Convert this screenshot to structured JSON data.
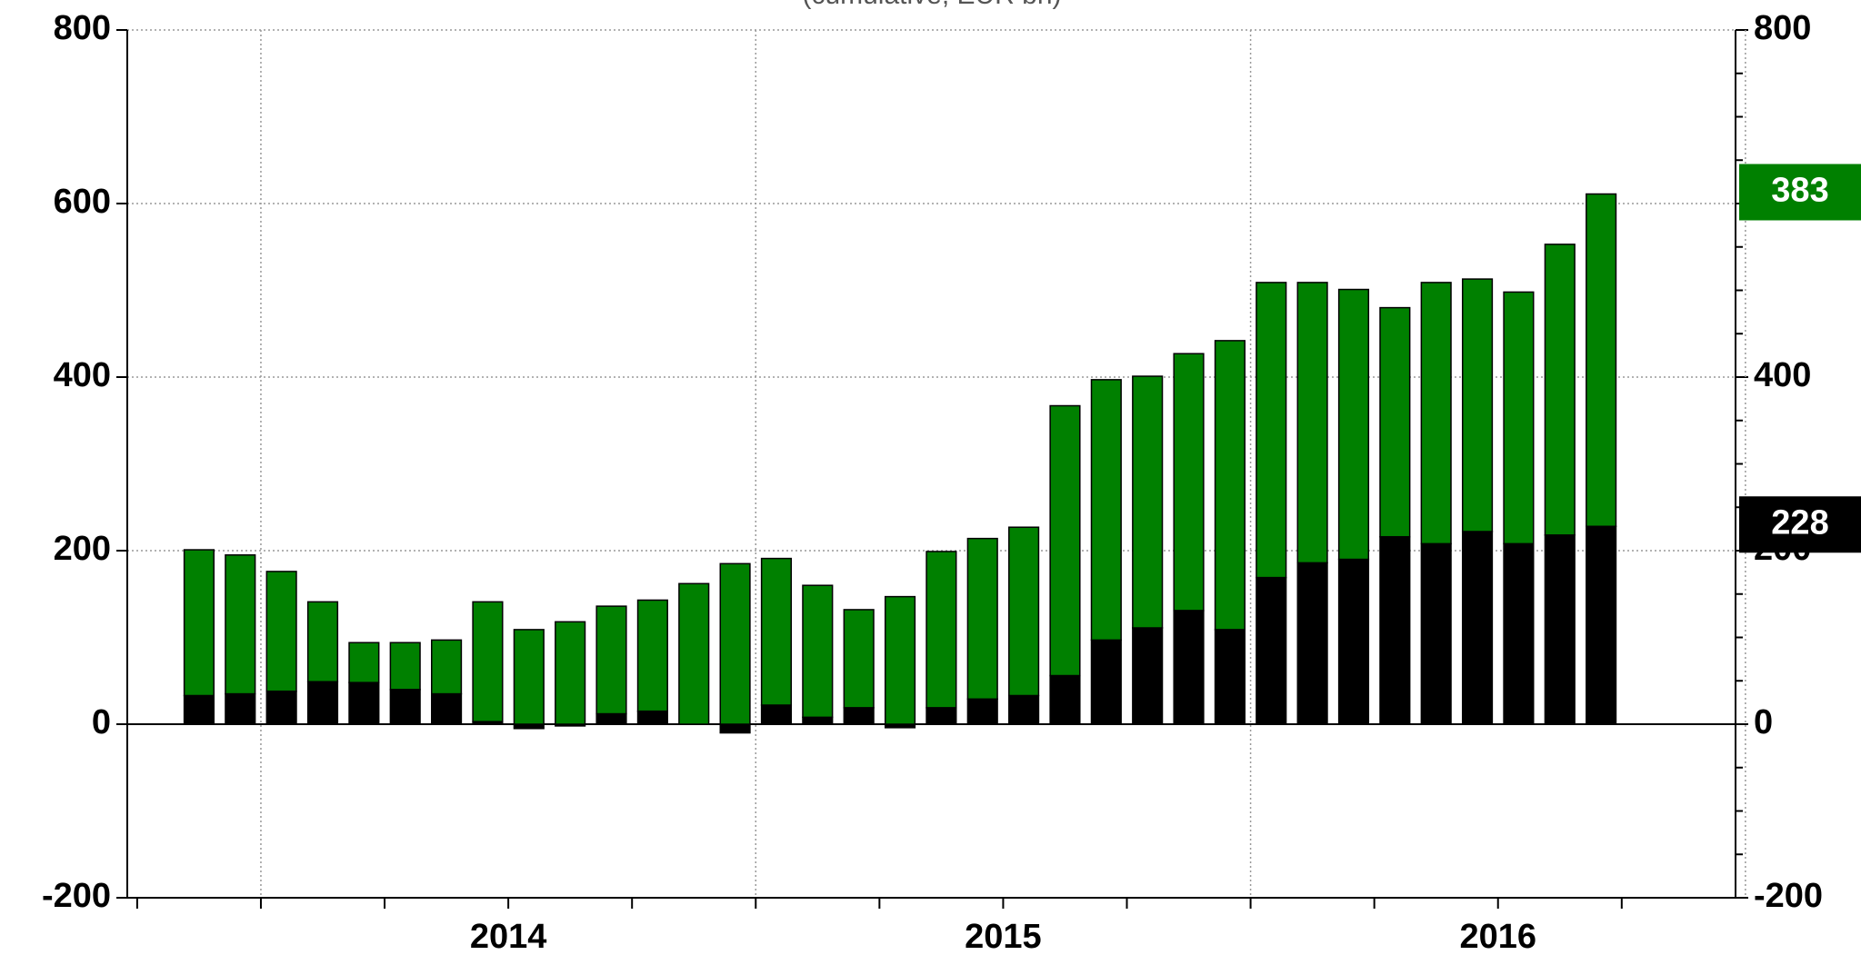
{
  "chart_data": {
    "type": "stacked_bar",
    "subtitle": "(cumulative, EUR bn)",
    "categories": [
      null,
      null,
      null,
      null,
      null,
      null,
      null,
      null,
      null,
      null,
      null,
      null,
      null,
      null,
      null,
      null,
      null,
      null,
      null,
      null,
      null,
      null,
      null,
      null,
      null,
      null,
      null,
      null,
      null,
      null,
      null,
      null,
      null,
      null,
      null,
      null
    ],
    "year_labels": [
      "2014",
      "2015",
      "2016"
    ],
    "series": [
      {
        "color": "#000000",
        "values": [
          0,
          33,
          35,
          38,
          49,
          48,
          40,
          35,
          3,
          -5,
          -2,
          12,
          15,
          0,
          -10,
          22,
          8,
          19,
          -4,
          19,
          29,
          33,
          56,
          97,
          111,
          131,
          109,
          169,
          186,
          190,
          216,
          208,
          222,
          208,
          218,
          228
        ]
      },
      {
        "color": "#008000",
        "values": [
          0,
          168,
          160,
          138,
          92,
          46,
          54,
          62,
          138,
          109,
          118,
          124,
          128,
          162,
          185,
          169,
          152,
          113,
          147,
          180,
          185,
          194,
          311,
          300,
          290,
          296,
          333,
          340,
          323,
          311,
          264,
          301,
          291,
          290,
          335,
          383
        ]
      }
    ],
    "ylim": [
      -200,
      800
    ],
    "yticks": [
      -200,
      0,
      200,
      400,
      600,
      800
    ],
    "y2lim": [
      -200,
      800
    ],
    "y2ticks": [
      -200,
      0,
      200,
      400,
      600,
      800
    ],
    "grid": true
  }
}
